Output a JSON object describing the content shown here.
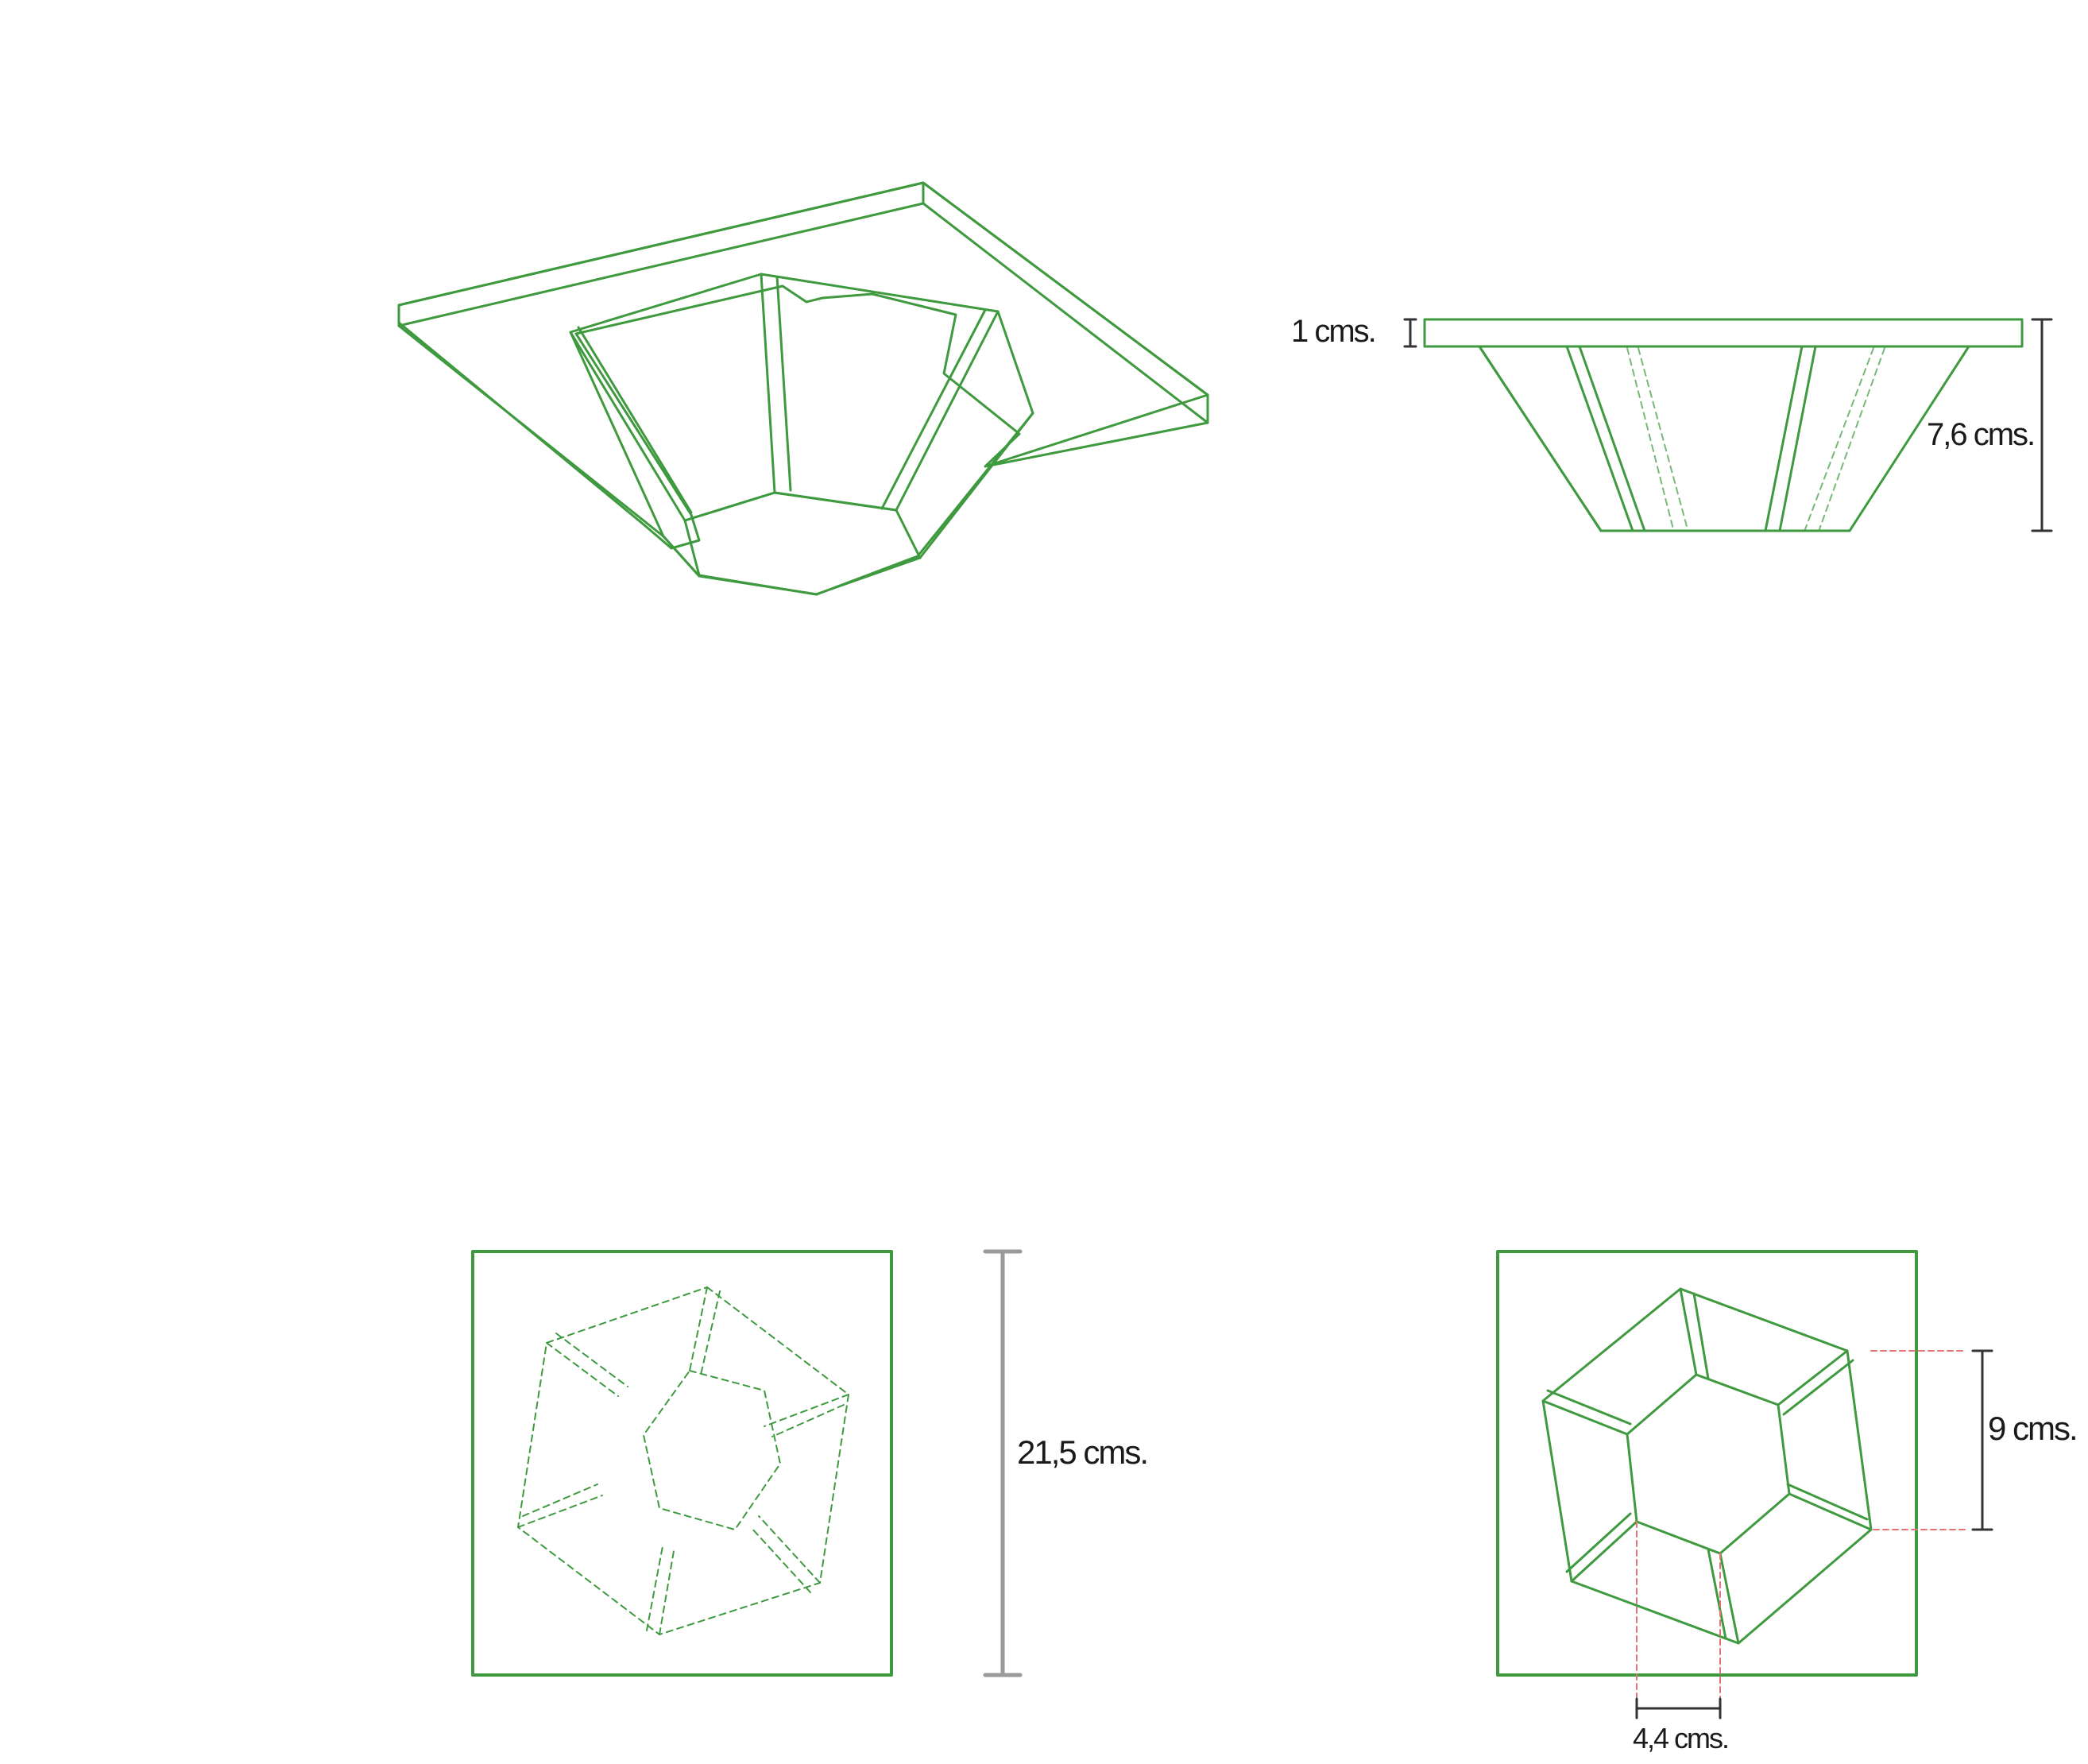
{
  "colors": {
    "line": "#3f9a3f",
    "dimension": "#333333",
    "scale_bar": "#9a9a9a",
    "guide": "#e57373"
  },
  "labels": {
    "flange_thickness": "1 cms.",
    "total_height": "7,6 cms.",
    "plate_width": "21,5 cms.",
    "hexagon_width": "9 cms.",
    "bottom_width": "4,4 cms."
  }
}
